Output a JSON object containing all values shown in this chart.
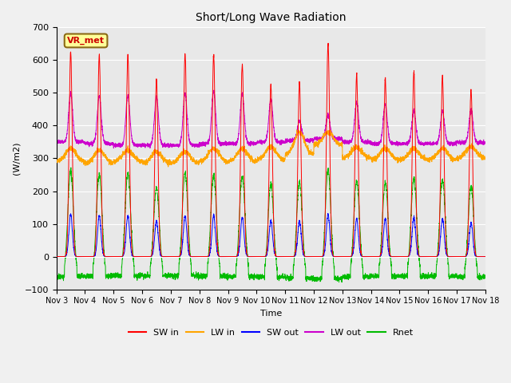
{
  "title": "Short/Long Wave Radiation",
  "ylabel": "(W/m2)",
  "xlabel": "Time",
  "ylim": [
    -100,
    700
  ],
  "yticks": [
    -100,
    0,
    100,
    200,
    300,
    400,
    500,
    600,
    700
  ],
  "fig_bg_color": "#f0f0f0",
  "ax_bg_color": "#e8e8e8",
  "station_label": "VR_met",
  "x_tick_labels": [
    "Nov 3",
    "Nov 4",
    "Nov 5",
    "Nov 6",
    "Nov 7",
    "Nov 8",
    "Nov 9",
    "Nov 10",
    "Nov 11",
    "Nov 12",
    "Nov 13",
    "Nov 14",
    "Nov 15",
    "Nov 16",
    "Nov 17",
    "Nov 18"
  ],
  "series": {
    "SW_in": {
      "color": "#ff0000",
      "label": "SW in"
    },
    "LW_in": {
      "color": "#ffa500",
      "label": "LW in"
    },
    "SW_out": {
      "color": "#0000ff",
      "label": "SW out"
    },
    "LW_out": {
      "color": "#cc00cc",
      "label": "LW out"
    },
    "Rnet": {
      "color": "#00bb00",
      "label": "Rnet"
    }
  },
  "n_days": 15,
  "pts_per_day": 288,
  "SW_in_peaks": [
    625,
    615,
    615,
    540,
    620,
    615,
    590,
    525,
    530,
    650,
    555,
    545,
    565,
    550,
    510
  ],
  "SW_out_peaks": [
    130,
    125,
    125,
    110,
    125,
    125,
    120,
    110,
    110,
    130,
    115,
    115,
    120,
    115,
    105
  ],
  "LW_in_base": [
    290,
    285,
    290,
    285,
    285,
    290,
    290,
    295,
    310,
    340,
    300,
    295,
    295,
    295,
    300
  ],
  "LW_in_day_bump": [
    40,
    40,
    35,
    35,
    35,
    40,
    40,
    40,
    70,
    40,
    35,
    35,
    35,
    35,
    35
  ],
  "LW_out_night": [
    350,
    345,
    340,
    340,
    340,
    345,
    345,
    350,
    355,
    360,
    350,
    345,
    345,
    345,
    348
  ],
  "LW_out_peaks": [
    498,
    490,
    492,
    488,
    498,
    505,
    498,
    480,
    415,
    432,
    470,
    465,
    445,
    445,
    448
  ],
  "Rnet_night": [
    -60,
    -60,
    -58,
    -58,
    -58,
    -60,
    -60,
    -62,
    -65,
    -68,
    -62,
    -60,
    -60,
    -60,
    -62
  ],
  "Rnet_peaks": [
    260,
    250,
    255,
    210,
    255,
    250,
    245,
    220,
    230,
    265,
    230,
    225,
    240,
    235,
    215
  ]
}
